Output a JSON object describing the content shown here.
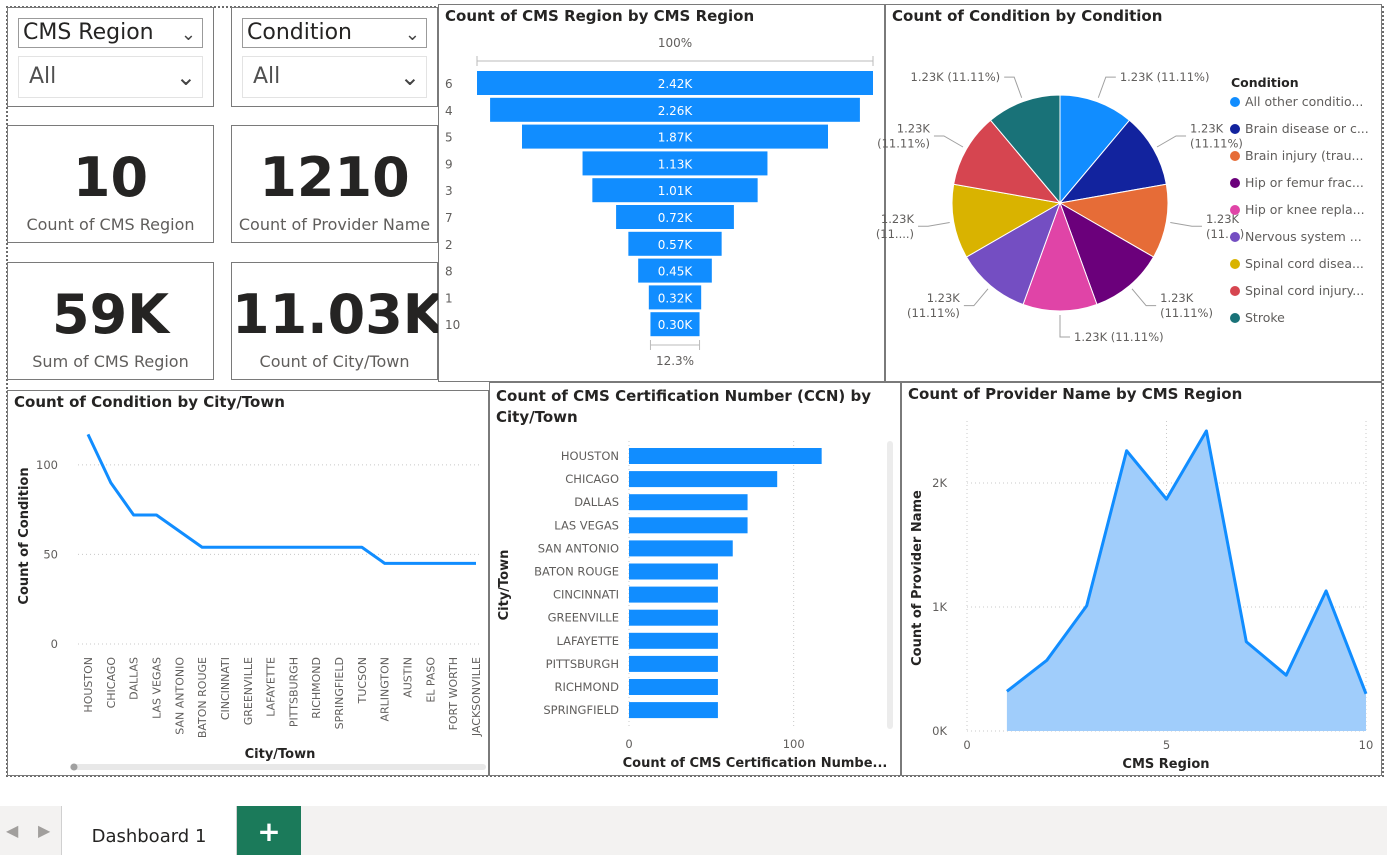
{
  "slicers": [
    {
      "title": "CMS Region",
      "value": "All"
    },
    {
      "title": "Condition",
      "value": "All"
    }
  ],
  "cards": [
    {
      "value": "10",
      "label": "Count of CMS Region"
    },
    {
      "value": "1210",
      "label": "Count of Provider Name"
    },
    {
      "value": "59K",
      "label": "Sum of CMS Region"
    },
    {
      "value": "11.03K",
      "label": "Count of City/Town"
    }
  ],
  "funnel": {
    "title": "Count of CMS Region by CMS Region",
    "top_label": "100%",
    "bottom_label": "12.3%"
  },
  "pie": {
    "title": "Count of Condition by Condition",
    "legend_title": "Condition"
  },
  "line": {
    "title": "Count of Condition by City/Town"
  },
  "hbar": {
    "title_line1": "Count of CMS Certification Number (CCN) by",
    "title_line2": "City/Town"
  },
  "area": {
    "title": "Count of Provider Name by CMS Region"
  },
  "tabs": {
    "active_label": "Dashboard 1",
    "add_label": "+"
  },
  "colors": {
    "bar_blue": "#118dff",
    "area_fill": "#a0cdfb",
    "add_tab_green": "#1b7a5a"
  },
  "chart_data": [
    {
      "type": "bar",
      "subtype": "funnel",
      "title": "Count of CMS Region by CMS Region",
      "categories": [
        "6",
        "4",
        "5",
        "9",
        "3",
        "7",
        "2",
        "8",
        "1",
        "10"
      ],
      "values": [
        2420,
        2260,
        1870,
        1130,
        1010,
        720,
        570,
        450,
        320,
        300
      ],
      "labels": [
        "2.42K",
        "2.26K",
        "1.87K",
        "1.13K",
        "1.01K",
        "0.72K",
        "0.57K",
        "0.45K",
        "0.32K",
        "0.30K"
      ]
    },
    {
      "type": "pie",
      "title": "Count of Condition by Condition",
      "legend_title": "Condition",
      "legend_position": "right",
      "categories": [
        "All other conditio...",
        "Brain disease or c...",
        "Brain injury (trau...",
        "Hip or femur frac...",
        "Hip or knee repla...",
        "Nervous system ...",
        "Spinal cord disea...",
        "Spinal cord injury...",
        "Stroke"
      ],
      "values": [
        1230,
        1230,
        1230,
        1230,
        1230,
        1230,
        1230,
        1230,
        1230
      ],
      "colors": [
        "#118dff",
        "#12239e",
        "#e66c37",
        "#6b007b",
        "#e044a7",
        "#744ec2",
        "#d9b300",
        "#d64550",
        "#197278"
      ],
      "slice_labels": [
        [
          "1.23K (11.11%)"
        ],
        [
          "1.23K",
          "(11.11%)"
        ],
        [
          "1.23K",
          "(11....)"
        ],
        [
          "1.23K",
          "(11.11%)"
        ],
        [
          "1.23K (11.11%)"
        ],
        [
          "1.23K",
          "(11.11%)"
        ],
        [
          "1.23K",
          "(11....)"
        ],
        [
          "1.23K",
          "(11.11%)"
        ],
        [
          "1.23K (11.11%)"
        ]
      ]
    },
    {
      "type": "line",
      "title": "Count of Condition by City/Town",
      "xlabel": "City/Town",
      "ylabel": "Count of Condition",
      "categories": [
        "HOUSTON",
        "CHICAGO",
        "DALLAS",
        "LAS VEGAS",
        "SAN ANTONIO",
        "BATON ROUGE",
        "CINCINNATI",
        "GREENVILLE",
        "LAFAYETTE",
        "PITTSBURGH",
        "RICHMOND",
        "SPRINGFIELD",
        "TUCSON",
        "ARLINGTON",
        "AUSTIN",
        "EL PASO",
        "FORT WORTH",
        "JACKSONVILLE"
      ],
      "values": [
        117,
        90,
        72,
        72,
        63,
        54,
        54,
        54,
        54,
        54,
        54,
        54,
        54,
        45,
        45,
        45,
        45,
        45
      ],
      "ylim": [
        0,
        120
      ],
      "yticks": [
        0,
        50,
        100
      ],
      "grid": true
    },
    {
      "type": "bar",
      "orientation": "horizontal",
      "title": "Count of CMS Certification Number (CCN) by City/Town",
      "xlabel": "Count of CMS Certification Numbe...",
      "ylabel": "City/Town",
      "categories": [
        "HOUSTON",
        "CHICAGO",
        "DALLAS",
        "LAS VEGAS",
        "SAN ANTONIO",
        "BATON ROUGE",
        "CINCINNATI",
        "GREENVILLE",
        "LAFAYETTE",
        "PITTSBURGH",
        "RICHMOND",
        "SPRINGFIELD"
      ],
      "values": [
        117,
        90,
        72,
        72,
        63,
        54,
        54,
        54,
        54,
        54,
        54,
        54
      ],
      "xlim": [
        0,
        150
      ],
      "xticks": [
        0,
        100
      ],
      "grid": true
    },
    {
      "type": "area",
      "title": "Count of Provider Name by CMS Region",
      "xlabel": "CMS Region",
      "ylabel": "Count of Provider Name",
      "x": [
        1,
        2,
        3,
        4,
        5,
        6,
        7,
        8,
        9,
        10
      ],
      "values": [
        320,
        570,
        1010,
        2260,
        1870,
        2420,
        720,
        450,
        1130,
        300
      ],
      "xlim": [
        0,
        10
      ],
      "ylim": [
        0,
        2500
      ],
      "xticks": [
        0,
        5,
        10
      ],
      "yticks": [
        0,
        1000,
        2000
      ],
      "ytick_labels": [
        "0K",
        "1K",
        "2K"
      ],
      "grid": true
    }
  ]
}
